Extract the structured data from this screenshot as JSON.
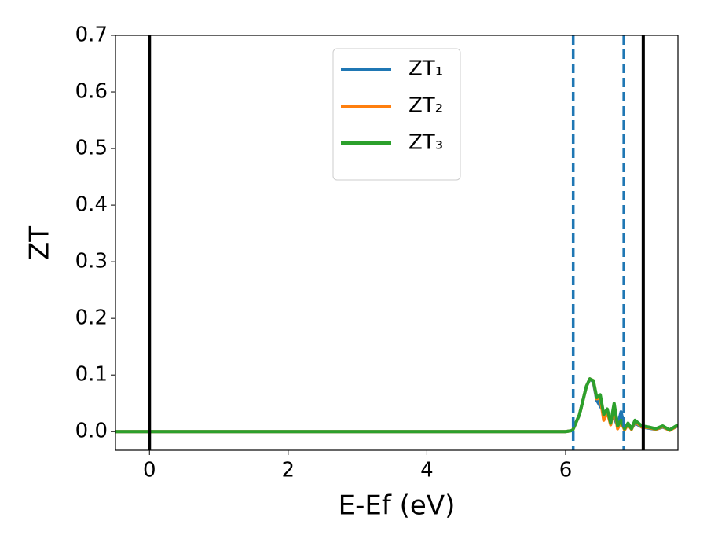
{
  "chart_data": {
    "type": "line",
    "xlabel": "E-Ef (eV)",
    "ylabel": "ZT",
    "x": [
      -0.49,
      6.0,
      6.1,
      6.2,
      6.3,
      6.35,
      6.4,
      6.45,
      6.5,
      6.55,
      6.6,
      6.65,
      6.7,
      6.75,
      6.8,
      6.85,
      6.9,
      6.95,
      7.0,
      7.1,
      7.2,
      7.3,
      7.4,
      7.5,
      7.62
    ],
    "series": [
      {
        "name": "ZT₁",
        "color": "#1f77b4",
        "values": [
          0,
          0,
          0.002,
          0.03,
          0.08,
          0.093,
          0.088,
          0.055,
          0.045,
          0.035,
          0.03,
          0.02,
          0.025,
          0.01,
          0.035,
          0.005,
          0.012,
          0.005,
          0.015,
          0.008,
          0.006,
          0.004,
          0.008,
          0.003,
          0.01
        ]
      },
      {
        "name": "ZT₂",
        "color": "#ff7f0e",
        "values": [
          0,
          0,
          0.002,
          0.03,
          0.08,
          0.093,
          0.09,
          0.058,
          0.06,
          0.02,
          0.035,
          0.012,
          0.045,
          0.005,
          0.018,
          0.003,
          0.013,
          0.004,
          0.018,
          0.008,
          0.007,
          0.004,
          0.009,
          0.002,
          0.011
        ]
      },
      {
        "name": "ZT₃",
        "color": "#2ca02c",
        "values": [
          0,
          0,
          0.002,
          0.03,
          0.08,
          0.093,
          0.09,
          0.06,
          0.065,
          0.03,
          0.04,
          0.015,
          0.05,
          0.01,
          0.02,
          0.005,
          0.015,
          0.005,
          0.02,
          0.01,
          0.008,
          0.005,
          0.01,
          0.003,
          0.012
        ]
      }
    ],
    "vlines": [
      {
        "x": 0,
        "color": "#000000",
        "dashed": false
      },
      {
        "x": 6.11,
        "color": "#1f77b4",
        "dashed": true
      },
      {
        "x": 6.84,
        "color": "#1f77b4",
        "dashed": true
      },
      {
        "x": 7.12,
        "color": "#000000",
        "dashed": false
      }
    ],
    "xlim": [
      -0.49,
      7.62
    ],
    "ylim": [
      -0.033,
      0.7
    ],
    "xticks": [
      0,
      2,
      4,
      6
    ],
    "yticks": [
      {
        "value": 0,
        "label": "0.0"
      },
      0.1,
      0.2,
      0.3,
      0.4,
      0.5,
      0.6,
      0.7
    ],
    "legend": "upper center",
    "grid": false
  }
}
